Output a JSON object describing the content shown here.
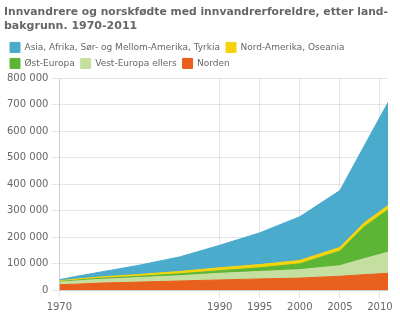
{
  "chart_data": {
    "type": "area",
    "title": "Innvandrere og norskfødte med innvandrerforeldre, etter land-\nbakgrunn. 1970-2011",
    "x": [
      1970,
      1972,
      1975,
      1980,
      1985,
      1990,
      1995,
      2000,
      2005,
      2008,
      2011
    ],
    "series": [
      {
        "name": "Norden",
        "color": "#E8601C",
        "values": [
          20000,
          22000,
          26000,
          30000,
          34000,
          38000,
          42000,
          45000,
          52000,
          58000,
          63000
        ]
      },
      {
        "name": "Vest-Europa ellers",
        "color": "#C5DFA0",
        "values": [
          10000,
          12000,
          14000,
          17000,
          20000,
          25000,
          28000,
          32000,
          40000,
          60000,
          80000
        ]
      },
      {
        "name": "Øst-Europa",
        "color": "#5DB535",
        "values": [
          2000,
          3000,
          4000,
          5000,
          7000,
          10000,
          14000,
          22000,
          55000,
          120000,
          160000
        ]
      },
      {
        "name": "Nord-Amerika, Oseania",
        "color": "#F5D30A",
        "values": [
          3000,
          4000,
          5000,
          7000,
          9000,
          11000,
          12000,
          13000,
          14000,
          15000,
          16000
        ]
      },
      {
        "name": "Asia, Afrika, Sør- og Mellom-Amerika, Tyrkia",
        "color": "#4AABCC",
        "values": [
          4000,
          10000,
          18000,
          35000,
          55000,
          85000,
          120000,
          165000,
          215000,
          290000,
          390000
        ]
      }
    ],
    "stacked": true,
    "xlim": [
      1970,
      2011
    ],
    "xticks": [
      1970,
      1990,
      1995,
      2000,
      2005,
      2010
    ],
    "ylim": [
      0,
      800000
    ],
    "yticks": [
      0,
      {
        "value": 100000,
        "label": "100 000"
      },
      {
        "value": 200000,
        "label": "200 000"
      },
      {
        "value": 300000,
        "label": "300 000"
      },
      {
        "value": 400000,
        "label": "400 000"
      },
      {
        "value": 500000,
        "label": "500 000"
      },
      {
        "value": 600000,
        "label": "600 000"
      },
      {
        "value": 700000,
        "label": "700 000"
      },
      {
        "value": 800000,
        "label": "800 000"
      }
    ],
    "grid": true,
    "legend": "upper left"
  }
}
